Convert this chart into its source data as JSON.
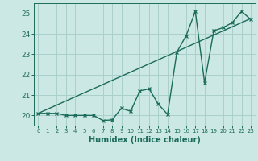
{
  "title": "",
  "xlabel": "Humidex (Indice chaleur)",
  "ylabel": "",
  "bg_color": "#cce8e4",
  "line_color": "#1a6b5a",
  "grid_color": "#aacfcb",
  "xlim": [
    -0.5,
    23.5
  ],
  "ylim": [
    19.5,
    25.5
  ],
  "yticks": [
    20,
    21,
    22,
    23,
    24,
    25
  ],
  "xticks": [
    0,
    1,
    2,
    3,
    4,
    5,
    6,
    7,
    8,
    9,
    10,
    11,
    12,
    13,
    14,
    15,
    16,
    17,
    18,
    19,
    20,
    21,
    22,
    23
  ],
  "zigzag_x": [
    0,
    1,
    2,
    3,
    4,
    5,
    6,
    7,
    8,
    9,
    10,
    11,
    12,
    13,
    14,
    15,
    16,
    17,
    18,
    19,
    20,
    21,
    22,
    23
  ],
  "zigzag_y": [
    20.1,
    20.1,
    20.1,
    20.0,
    20.0,
    20.0,
    20.0,
    19.75,
    19.78,
    20.35,
    20.2,
    21.2,
    21.3,
    20.55,
    20.05,
    23.1,
    23.9,
    25.1,
    21.6,
    24.15,
    24.3,
    24.55,
    25.1,
    24.7
  ],
  "trend_x": [
    0,
    23
  ],
  "trend_y": [
    20.1,
    24.75
  ]
}
